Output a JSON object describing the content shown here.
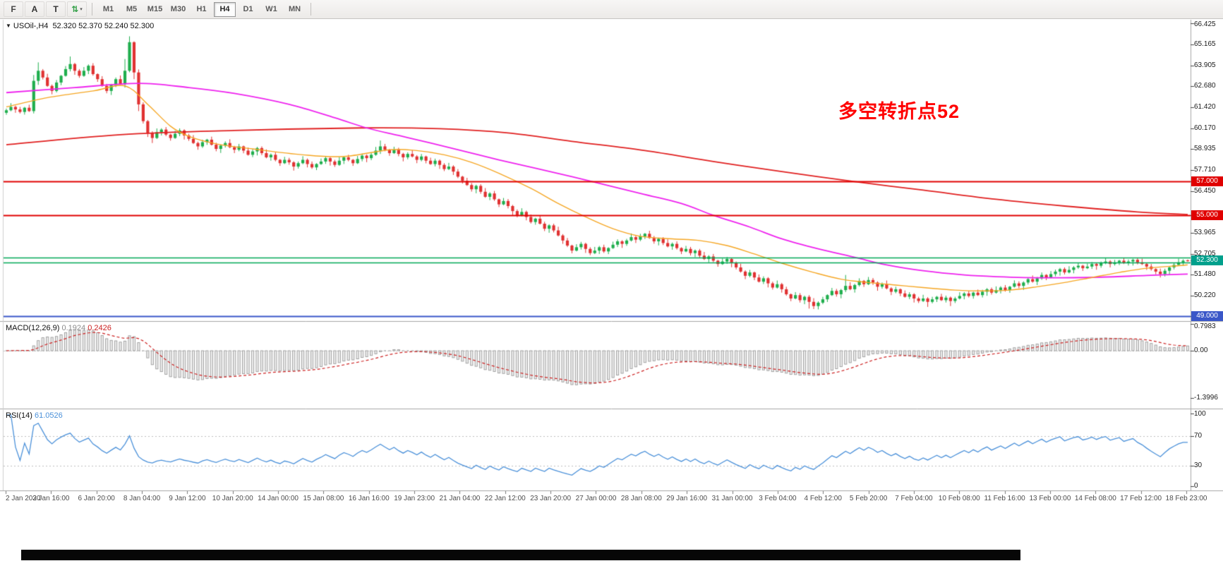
{
  "toolbar": {
    "left_buttons": [
      {
        "name": "chart-f-button",
        "glyph": "F",
        "color": "#444444"
      },
      {
        "name": "font-a-button",
        "glyph": "A",
        "color": "#333333"
      },
      {
        "name": "text-tool-button",
        "glyph": "T",
        "color": "#333333"
      },
      {
        "name": "chart-shift-button",
        "glyph": "⇅",
        "color": "#2f9e44",
        "caret": "▾"
      }
    ],
    "timeframes": [
      "M1",
      "M5",
      "M15",
      "M30",
      "H1",
      "H4",
      "D1",
      "W1",
      "MN"
    ],
    "active_timeframe": "H4"
  },
  "main_chart": {
    "collapse_glyph": "▼",
    "symbol_period": "USOil-,H4",
    "ohlc": "52.320 52.370 52.240 52.300",
    "annotation": {
      "text": "多空转折点52",
      "color": "#ff0000"
    },
    "price_scale_labels": [
      {
        "text": "66.425",
        "value": 66.425
      },
      {
        "text": "65.165",
        "value": 65.165
      },
      {
        "text": "63.905",
        "value": 63.905
      },
      {
        "text": "62.680",
        "value": 62.68
      },
      {
        "text": "61.420",
        "value": 61.42
      },
      {
        "text": "60.170",
        "value": 60.17
      },
      {
        "text": "58.935",
        "value": 58.935
      },
      {
        "text": "57.710",
        "value": 57.71
      },
      {
        "text": "56.450",
        "value": 56.45
      },
      {
        "text": "53.965",
        "value": 53.965
      },
      {
        "text": "52.705",
        "value": 52.705
      },
      {
        "text": "51.480",
        "value": 51.48
      },
      {
        "text": "50.220",
        "value": 50.22
      }
    ],
    "badges": [
      {
        "text": "57.000",
        "value": 57.0,
        "bg": "#e00000"
      },
      {
        "text": "55.000",
        "value": 55.0,
        "bg": "#e00000"
      },
      {
        "text": "52.300",
        "value": 52.3,
        "bg": "#00a08c"
      },
      {
        "text": "49.000",
        "value": 49.0,
        "bg": "#3a57c8"
      }
    ],
    "levels": [
      {
        "value": 57.0,
        "color": "#e00000",
        "width": 2
      },
      {
        "value": 55.0,
        "color": "#e00000",
        "width": 2
      },
      {
        "value": 52.5,
        "color": "#00a857",
        "width": 1.6
      },
      {
        "value": 52.2,
        "color": "#00a857",
        "width": 1.6
      },
      {
        "value": 49.0,
        "color": "#3a57c8",
        "width": 2
      }
    ]
  },
  "macd_panel": {
    "name": "MACD(12,26,9)",
    "value_main": "0.1924",
    "value_signal": "0.2426",
    "scale_labels": [
      {
        "text": "0.7983",
        "value": 0.7983
      },
      {
        "text": "0.00",
        "value": 0
      },
      {
        "text": "-1.3996",
        "value": -1.3996
      }
    ]
  },
  "rsi_panel": {
    "name": "RSI(14)",
    "value": "61.0526",
    "scale_labels": [
      {
        "text": "100",
        "value": 100
      },
      {
        "text": "70",
        "value": 70
      },
      {
        "text": "30",
        "value": 30
      },
      {
        "text": "0",
        "value": 0
      }
    ],
    "levels": [
      70,
      30
    ]
  },
  "time_axis": {
    "labels": [
      "2 Jan 2020",
      "3 Jan 16:00",
      "6 Jan 20:00",
      "8 Jan 04:00",
      "9 Jan 12:00",
      "10 Jan 20:00",
      "14 Jan 00:00",
      "15 Jan 08:00",
      "16 Jan 16:00",
      "19 Jan 23:00",
      "21 Jan 04:00",
      "22 Jan 12:00",
      "23 Jan 20:00",
      "27 Jan 00:00",
      "28 Jan 08:00",
      "29 Jan 16:00",
      "31 Jan 00:00",
      "3 Feb 04:00",
      "4 Feb 12:00",
      "5 Feb 20:00",
      "7 Feb 04:00",
      "10 Feb 08:00",
      "11 Feb 16:00",
      "13 Feb 00:00",
      "14 Feb 08:00",
      "17 Feb 12:00",
      "18 Feb 23:00"
    ]
  },
  "colors": {
    "up": "#1fae4d",
    "down": "#e03232",
    "level_green": "#00a857",
    "macd_hist_fill": "#ececec",
    "macd_hist_stroke": "#9a9a9a",
    "macd_signal": "#cc2222",
    "macd_value_main": "#8a8a8a",
    "rsi_line": "#4a90d9",
    "dotted_levels": "#bdbdbd",
    "panel_border": "#a6a6a6",
    "axis_text": "#4d4d4d"
  },
  "chart_data": {
    "type": "candlestick",
    "symbol": "USOil-",
    "timeframe": "H4",
    "title": "USOil-,H4 52.320 52.370 52.240 52.300",
    "price_axis": {
      "visible_max": 66.425,
      "visible_min": 48.7
    },
    "last_bar": {
      "open": 52.32,
      "high": 52.37,
      "low": 52.24,
      "close": 52.3
    },
    "first_open": 61.1,
    "closes": [
      61.25,
      61.45,
      61.3,
      61.15,
      61.4,
      61.2,
      63.0,
      63.6,
      63.2,
      62.7,
      62.4,
      62.9,
      63.3,
      63.7,
      64.0,
      63.6,
      63.3,
      63.6,
      63.9,
      63.4,
      63.1,
      62.7,
      62.4,
      62.75,
      63.1,
      62.8,
      63.6,
      65.3,
      63.5,
      61.6,
      60.6,
      59.9,
      59.6,
      59.95,
      60.1,
      59.8,
      59.6,
      59.85,
      60.05,
      59.75,
      59.55,
      59.3,
      59.1,
      59.35,
      59.5,
      59.2,
      58.95,
      59.15,
      59.3,
      59.05,
      58.9,
      59.1,
      58.85,
      58.6,
      58.8,
      59.0,
      58.7,
      58.45,
      58.6,
      58.3,
      58.1,
      58.3,
      58.15,
      57.9,
      58.1,
      58.3,
      58.05,
      57.85,
      58.05,
      58.2,
      58.4,
      58.2,
      58.0,
      58.25,
      58.45,
      58.3,
      58.1,
      58.35,
      58.55,
      58.4,
      58.6,
      58.85,
      59.1,
      58.9,
      58.7,
      58.9,
      58.65,
      58.45,
      58.65,
      58.5,
      58.3,
      58.5,
      58.25,
      58.05,
      58.25,
      58.0,
      57.75,
      57.9,
      57.6,
      57.3,
      57.05,
      56.8,
      56.55,
      56.75,
      56.4,
      56.1,
      56.3,
      55.95,
      55.65,
      55.85,
      55.55,
      55.25,
      55.0,
      55.2,
      54.9,
      54.6,
      54.8,
      54.5,
      54.2,
      54.4,
      54.1,
      53.8,
      53.5,
      53.2,
      52.9,
      53.1,
      53.3,
      53.0,
      52.75,
      52.9,
      53.1,
      52.85,
      53.05,
      53.25,
      53.45,
      53.3,
      53.5,
      53.7,
      53.55,
      53.75,
      53.9,
      53.65,
      53.45,
      53.6,
      53.35,
      53.15,
      53.3,
      53.05,
      52.85,
      53.0,
      52.75,
      52.9,
      52.6,
      52.4,
      52.55,
      52.3,
      52.1,
      52.25,
      52.4,
      52.15,
      51.9,
      51.65,
      51.4,
      51.6,
      51.3,
      51.05,
      51.25,
      50.95,
      50.7,
      50.9,
      50.6,
      50.3,
      50.05,
      50.25,
      49.95,
      50.15,
      49.85,
      49.6,
      49.8,
      50.0,
      50.25,
      50.5,
      50.3,
      50.55,
      50.8,
      50.6,
      50.85,
      51.1,
      50.9,
      51.15,
      51.0,
      50.75,
      50.9,
      50.65,
      50.45,
      50.6,
      50.35,
      50.15,
      50.3,
      50.05,
      49.9,
      50.05,
      49.85,
      50.0,
      50.15,
      49.95,
      50.1,
      49.9,
      50.05,
      50.2,
      50.35,
      50.2,
      50.4,
      50.25,
      50.45,
      50.6,
      50.4,
      50.55,
      50.7,
      50.55,
      50.75,
      50.95,
      50.8,
      51.0,
      51.2,
      51.05,
      51.25,
      51.45,
      51.3,
      51.5,
      51.65,
      51.8,
      51.6,
      51.75,
      51.9,
      52.0,
      51.85,
      51.95,
      52.1,
      52.0,
      52.15,
      52.25,
      52.1,
      52.2,
      52.3,
      52.15,
      52.25,
      52.35,
      52.2,
      52.1,
      51.95,
      51.8,
      51.65,
      51.5,
      51.7,
      51.9,
      52.05,
      52.2,
      52.3,
      52.3
    ],
    "wick_up_pattern": [
      0.1,
      0.22,
      0.08,
      0.15,
      0.05,
      0.18,
      0.12,
      0.07
    ],
    "wick_down_pattern": [
      0.12,
      0.06,
      0.2,
      0.09,
      0.16,
      0.05,
      0.14,
      0.24
    ],
    "overrides": {
      "6": {
        "h": 63.35
      },
      "7": {
        "h": 64.1
      },
      "14": {
        "h": 64.45
      },
      "26": {
        "h": 64.3
      },
      "27": {
        "h": 65.65
      },
      "28": {
        "l": 63.1
      },
      "29": {
        "l": 61.2
      },
      "32": {
        "l": 59.3
      },
      "82": {
        "h": 59.45
      },
      "176": {
        "l": 49.45
      },
      "177": {
        "l": 49.42
      },
      "184": {
        "h": 51.45
      },
      "202": {
        "l": 49.55
      },
      "207": {
        "l": 49.6
      },
      "253": {
        "l": 51.3
      },
      "259": {
        "o": 52.32,
        "h": 52.37,
        "l": 52.24,
        "c": 52.3
      }
    },
    "moving_averages": [
      {
        "name": "slow-red",
        "color": "#e02020",
        "width": 1.8,
        "anchors": [
          [
            0,
            59.2
          ],
          [
            25,
            59.8
          ],
          [
            50,
            60.05
          ],
          [
            78,
            60.2
          ],
          [
            95,
            60.15
          ],
          [
            110,
            59.9
          ],
          [
            124,
            59.4
          ],
          [
            140,
            58.85
          ],
          [
            155,
            58.2
          ],
          [
            170,
            57.6
          ],
          [
            186,
            57.0
          ],
          [
            201,
            56.5
          ],
          [
            217,
            55.95
          ],
          [
            232,
            55.55
          ],
          [
            248,
            55.2
          ],
          [
            259,
            55.05
          ]
        ]
      },
      {
        "name": "medium-magenta",
        "color": "#ee22ee",
        "width": 1.8,
        "anchors": [
          [
            0,
            62.3
          ],
          [
            15,
            62.6
          ],
          [
            29,
            62.85
          ],
          [
            40,
            62.6
          ],
          [
            50,
            62.25
          ],
          [
            62,
            61.6
          ],
          [
            72,
            60.8
          ],
          [
            79,
            60.2
          ],
          [
            86,
            59.75
          ],
          [
            93,
            59.3
          ],
          [
            108,
            58.3
          ],
          [
            124,
            57.3
          ],
          [
            139,
            56.3
          ],
          [
            148,
            55.7
          ],
          [
            155,
            55.0
          ],
          [
            163,
            54.3
          ],
          [
            170,
            53.6
          ],
          [
            178,
            53.0
          ],
          [
            186,
            52.5
          ],
          [
            193,
            52.05
          ],
          [
            201,
            51.7
          ],
          [
            210,
            51.45
          ],
          [
            217,
            51.35
          ],
          [
            228,
            51.28
          ],
          [
            240,
            51.32
          ],
          [
            250,
            51.42
          ],
          [
            259,
            51.5
          ]
        ]
      },
      {
        "name": "fast-orange",
        "color": "#f5a623",
        "width": 1.4,
        "anchors": [
          [
            0,
            61.45
          ],
          [
            9,
            62.0
          ],
          [
            19,
            62.4
          ],
          [
            26,
            62.7
          ],
          [
            31,
            61.6
          ],
          [
            36,
            60.3
          ],
          [
            40,
            59.7
          ],
          [
            46,
            59.25
          ],
          [
            54,
            58.95
          ],
          [
            65,
            58.6
          ],
          [
            74,
            58.5
          ],
          [
            84,
            58.9
          ],
          [
            90,
            58.85
          ],
          [
            96,
            58.6
          ],
          [
            102,
            58.15
          ],
          [
            108,
            57.5
          ],
          [
            115,
            56.6
          ],
          [
            121,
            55.7
          ],
          [
            127,
            54.9
          ],
          [
            133,
            54.2
          ],
          [
            139,
            53.75
          ],
          [
            146,
            53.6
          ],
          [
            152,
            53.5
          ],
          [
            158,
            53.2
          ],
          [
            164,
            52.7
          ],
          [
            170,
            52.15
          ],
          [
            177,
            51.6
          ],
          [
            183,
            51.2
          ],
          [
            189,
            51.0
          ],
          [
            195,
            50.85
          ],
          [
            201,
            50.7
          ],
          [
            208,
            50.55
          ],
          [
            214,
            50.5
          ],
          [
            220,
            50.55
          ],
          [
            226,
            50.75
          ],
          [
            232,
            51.0
          ],
          [
            238,
            51.3
          ],
          [
            244,
            51.6
          ],
          [
            250,
            51.85
          ],
          [
            257,
            52.0
          ],
          [
            259,
            52.05
          ]
        ]
      }
    ],
    "macd": {
      "fast": 12,
      "slow": 26,
      "signal": 9,
      "current_main": 0.1924,
      "current_signal": 0.2426,
      "axis": {
        "max": 0.7983,
        "min": -1.3996
      }
    },
    "rsi": {
      "period": 14,
      "current": 61.0526,
      "levels": [
        70,
        30
      ],
      "axis": {
        "max": 100,
        "min": 0
      }
    }
  }
}
